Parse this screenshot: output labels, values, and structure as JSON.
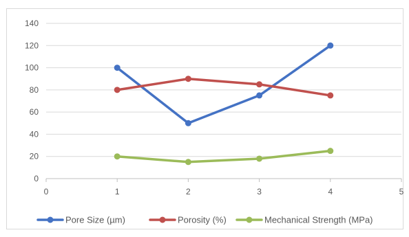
{
  "chart_data": {
    "type": "line",
    "x": [
      1,
      2,
      3,
      4
    ],
    "xlim": [
      0,
      5
    ],
    "ylim": [
      0,
      140
    ],
    "x_ticks": [
      "0",
      "1",
      "2",
      "3",
      "4",
      "5"
    ],
    "y_ticks": [
      "0",
      "20",
      "40",
      "60",
      "80",
      "100",
      "120",
      "140"
    ],
    "grid": "horizontal",
    "legend_position": "bottom",
    "series": [
      {
        "name": "Pore Size (µm)",
        "color": "#4472C4",
        "values": [
          100,
          50,
          75,
          120
        ]
      },
      {
        "name": "Porosity (%)",
        "color": "#C0504D",
        "values": [
          80,
          90,
          85,
          75
        ]
      },
      {
        "name": "Mechanical Strength (MPa)",
        "color": "#9BBB59",
        "values": [
          20,
          15,
          18,
          25
        ]
      }
    ]
  }
}
